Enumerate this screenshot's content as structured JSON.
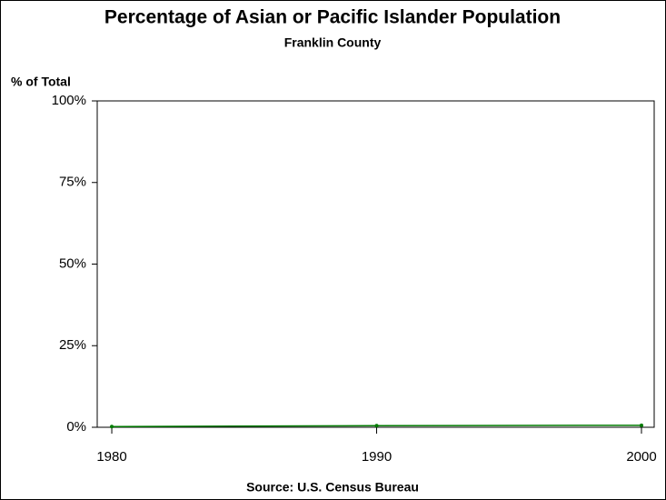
{
  "chart_data": {
    "type": "line",
    "title": "Percentage of Asian or Pacific Islander Population",
    "subtitle": "Franklin County",
    "y_label": "% of Total",
    "source": "Source: U.S. Census Bureau",
    "x": [
      1980,
      1990,
      2000
    ],
    "values": [
      0.2,
      0.5,
      0.6
    ],
    "color": "#007a00",
    "xlim": [
      1979.45,
      2000.48
    ],
    "xticks": [
      1980,
      1990,
      2000
    ],
    "ylim": [
      0,
      100
    ],
    "yticks": [
      {
        "value": 0,
        "label": "0%"
      },
      {
        "value": 25,
        "label": "25%"
      },
      {
        "value": 50,
        "label": "50%"
      },
      {
        "value": 75,
        "label": "75%"
      },
      {
        "value": 100,
        "label": "100%"
      }
    ]
  }
}
